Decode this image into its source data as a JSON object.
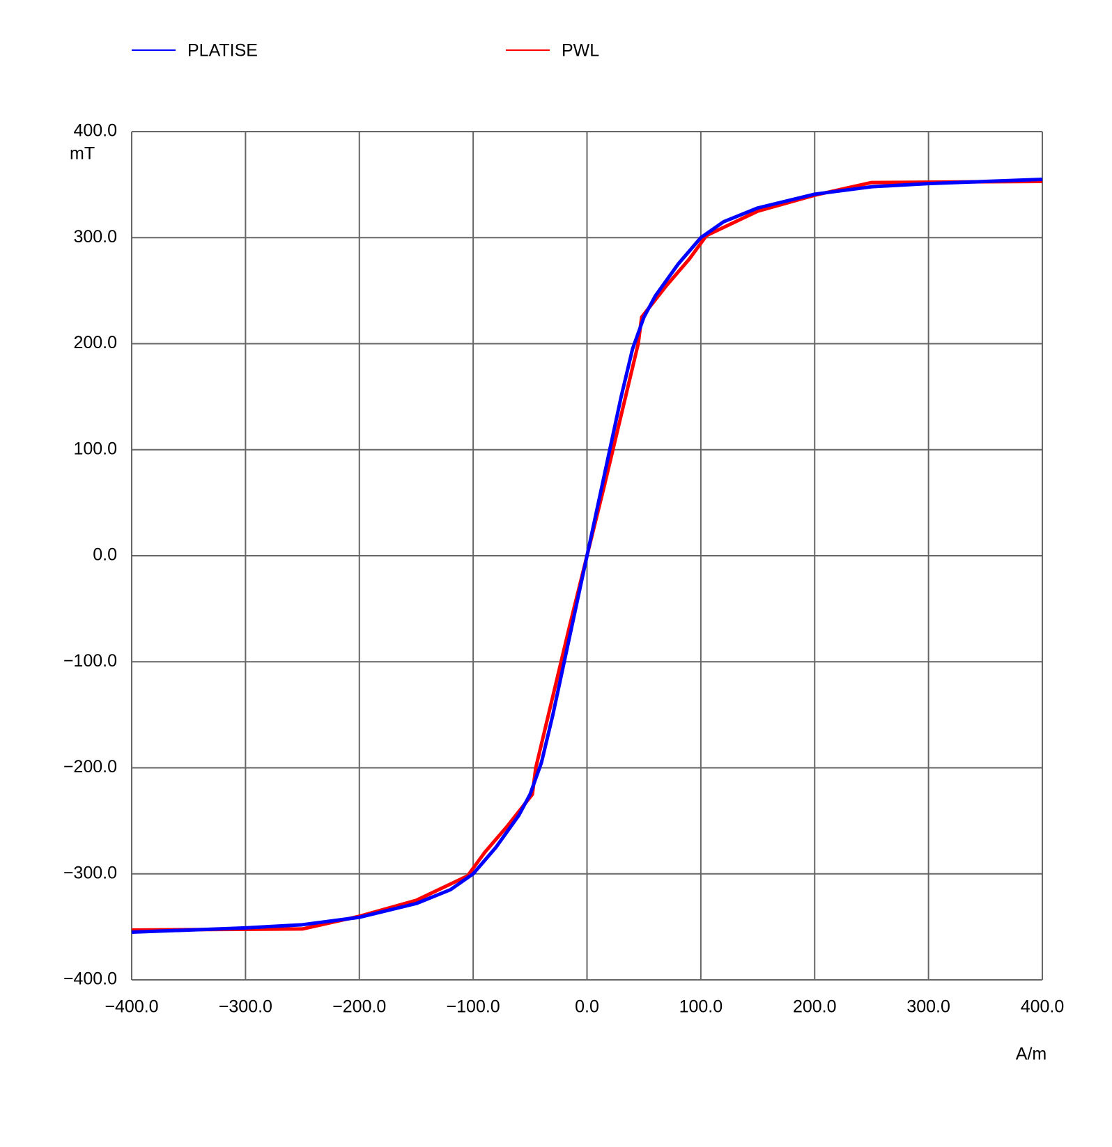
{
  "chart_data": {
    "type": "line",
    "x_label": "A/m",
    "y_label": "mT",
    "xlim": [
      -400,
      400
    ],
    "ylim": [
      -400,
      400
    ],
    "xticks": [
      {
        "value": -400,
        "label": "−400.0"
      },
      {
        "value": -300,
        "label": "−300.0"
      },
      {
        "value": -200,
        "label": "−200.0"
      },
      {
        "value": -100,
        "label": "−100.0"
      },
      {
        "value": 0,
        "label": "0.0"
      },
      {
        "value": 100,
        "label": "100.0"
      },
      {
        "value": 200,
        "label": "200.0"
      },
      {
        "value": 300,
        "label": "300.0"
      },
      {
        "value": 400,
        "label": "400.0"
      }
    ],
    "yticks": [
      {
        "value": -400,
        "label": "−400.0"
      },
      {
        "value": -300,
        "label": "−300.0"
      },
      {
        "value": -200,
        "label": "−200.0"
      },
      {
        "value": -100,
        "label": "−100.0"
      },
      {
        "value": 0,
        "label": "0.0"
      },
      {
        "value": 100,
        "label": "100.0"
      },
      {
        "value": 200,
        "label": "200.0"
      },
      {
        "value": 300,
        "label": "300.0"
      },
      {
        "value": 400,
        "label": "400.0"
      }
    ],
    "grid": true,
    "series": [
      {
        "name": "PLATISE",
        "color": "#0000ff",
        "x": [
          -400,
          -350,
          -300,
          -250,
          -200,
          -150,
          -120,
          -100,
          -80,
          -60,
          -50,
          -40,
          -30,
          -20,
          -10,
          0,
          10,
          20,
          30,
          40,
          50,
          60,
          80,
          100,
          120,
          150,
          200,
          250,
          300,
          350,
          400
        ],
        "values": [
          -355,
          -353,
          -351,
          -348,
          -341,
          -328,
          -315,
          -300,
          -275,
          -245,
          -225,
          -195,
          -150,
          -100,
          -50,
          0,
          50,
          100,
          150,
          195,
          225,
          245,
          275,
          300,
          315,
          328,
          341,
          348,
          351,
          353,
          355
        ]
      },
      {
        "name": "PWL",
        "color": "#ff0000",
        "x": [
          -400,
          -250,
          -200,
          -150,
          -105,
          -90,
          -70,
          -48,
          -45,
          -35,
          -25,
          -15,
          0,
          15,
          25,
          35,
          45,
          48,
          70,
          90,
          105,
          150,
          200,
          250,
          400
        ],
        "values": [
          -353,
          -352,
          -340,
          -325,
          -302,
          -280,
          -255,
          -225,
          -200,
          -155,
          -110,
          -65,
          0,
          65,
          110,
          155,
          200,
          225,
          255,
          280,
          302,
          325,
          340,
          352,
          353
        ]
      }
    ]
  }
}
